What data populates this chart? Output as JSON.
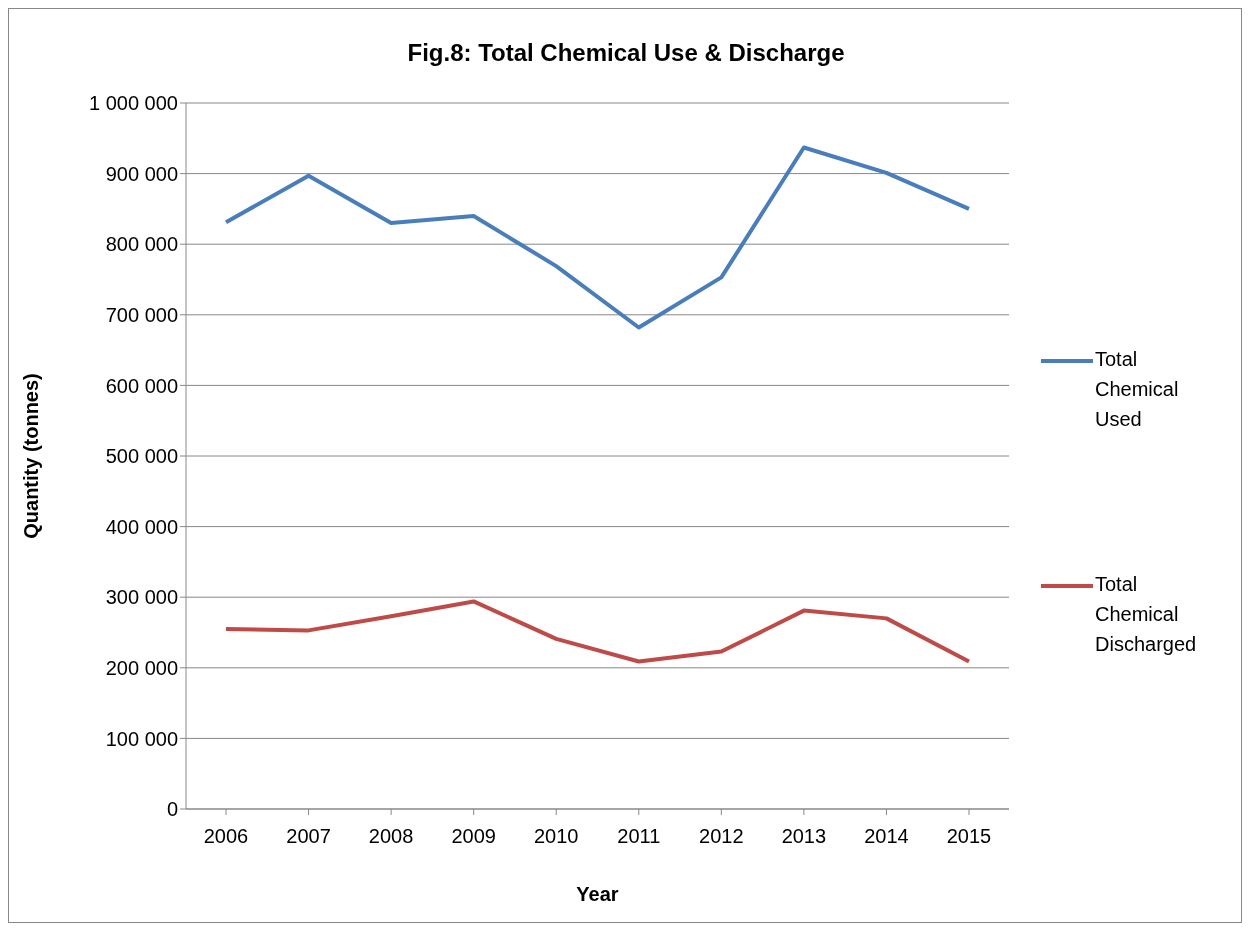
{
  "chart_data": {
    "type": "line",
    "title": "Fig.8: Total Chemical Use & Discharge",
    "xlabel": "Year",
    "ylabel": "Quantity (tonnes)",
    "categories": [
      "2006",
      "2007",
      "2008",
      "2009",
      "2010",
      "2011",
      "2012",
      "2013",
      "2014",
      "2015"
    ],
    "series": [
      {
        "name": "Total Chemical Used",
        "color": "#4a7ebb",
        "values": [
          831000,
          897000,
          830000,
          840000,
          769000,
          682000,
          753000,
          937000,
          901000,
          850000
        ]
      },
      {
        "name": "Total Chemical Discharged",
        "color": "#be4b48",
        "values": [
          255000,
          253000,
          273000,
          294000,
          241000,
          209000,
          223000,
          281000,
          270000,
          209000
        ]
      }
    ],
    "ylim": [
      0,
      1000000
    ],
    "yticks": [
      0,
      {
        "value": 100000,
        "label": "100 000"
      },
      {
        "value": 200000,
        "label": "200 000"
      },
      {
        "value": 300000,
        "label": "300 000"
      },
      {
        "value": 400000,
        "label": "400 000"
      },
      {
        "value": 500000,
        "label": "500 000"
      },
      {
        "value": 600000,
        "label": "600 000"
      },
      {
        "value": 700000,
        "label": "700 000"
      },
      {
        "value": 800000,
        "label": "800 000"
      },
      {
        "value": 900000,
        "label": "900 000"
      },
      {
        "value": 1000000,
        "label": "1 000 000"
      }
    ],
    "grid": "y",
    "legend": "right",
    "marker": "none",
    "line_style": "solid"
  }
}
